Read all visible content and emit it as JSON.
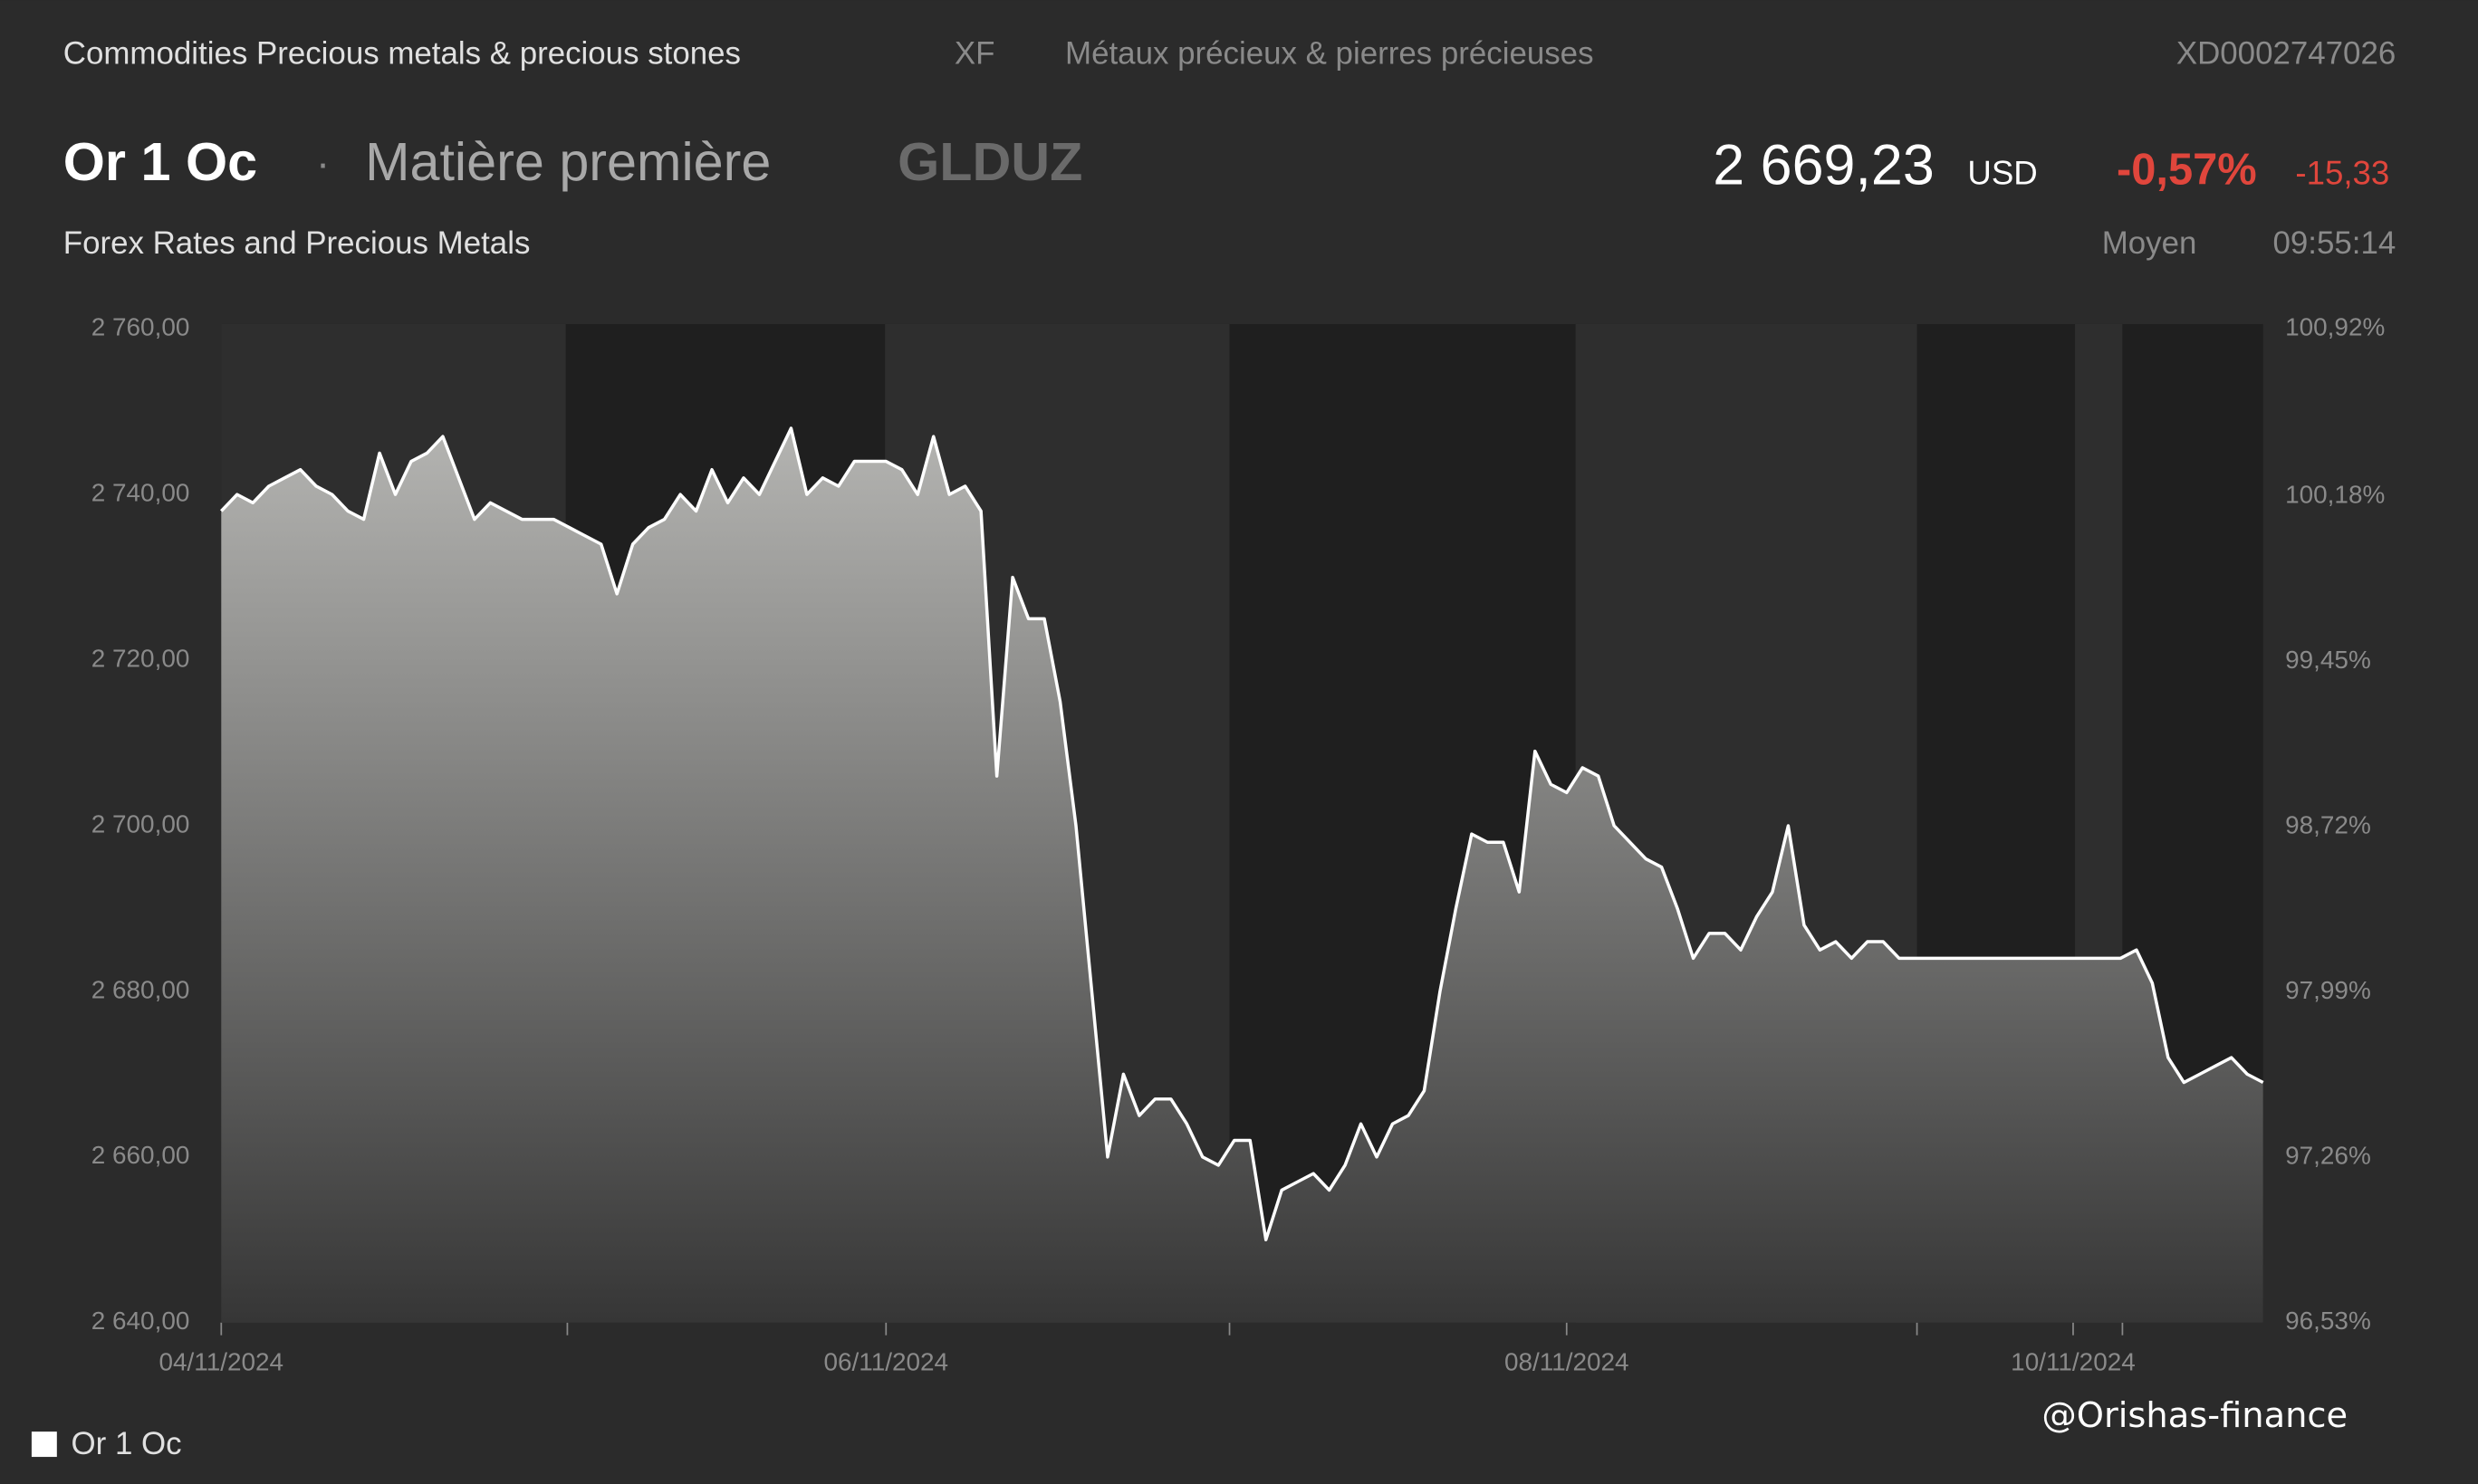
{
  "header": {
    "source": "Commodities Precious metals & precious stones",
    "exchange": "XF",
    "source_fr": "Métaux précieux & pierres précieuses",
    "code": "XD0002747026",
    "name": "Or 1 Oc",
    "separator": "·",
    "kind": "Matière première",
    "ticker": "GLDUZ",
    "price": "2 669,23",
    "currency": "USD",
    "change_pct": "-0,57%",
    "change": "-15,33",
    "market": "Forex Rates and Precious Metals",
    "price_type": "Moyen",
    "time": "09:55:14",
    "watermark": "@Orishas-finance"
  },
  "chart_data": {
    "type": "area",
    "categories": [
      "04/11/2024",
      null,
      null,
      null,
      null,
      null,
      null,
      null,
      null,
      null,
      null,
      null,
      null,
      null,
      null,
      null,
      null,
      null,
      null,
      null,
      null,
      null,
      null,
      null,
      null,
      null,
      null,
      null,
      null,
      null,
      null,
      null,
      null,
      null,
      null,
      null,
      null,
      null,
      null,
      null,
      null,
      null,
      "06/11/2024",
      null,
      null,
      null,
      null,
      null,
      null,
      null,
      null,
      null,
      null,
      null,
      null,
      null,
      null,
      null,
      null,
      null,
      null,
      null,
      null,
      null,
      null,
      null,
      null,
      null,
      null,
      null,
      null,
      null,
      null,
      null,
      null,
      null,
      null,
      null,
      null,
      null,
      null,
      null,
      null,
      null,
      null,
      "08/11/2024",
      null,
      null,
      null,
      null,
      null,
      null,
      null,
      null,
      null,
      null,
      null,
      null,
      null,
      null,
      null,
      null,
      null,
      null,
      null,
      null,
      null,
      null,
      null,
      null,
      null,
      null,
      null,
      null,
      null,
      null,
      null,
      "10/11/2024",
      null,
      null,
      null,
      null,
      null,
      null,
      null,
      null,
      null,
      null,
      null,
      null
    ],
    "series": [
      {
        "name": "Or 1 Oc",
        "color": "#ffffff",
        "values": [
          2738,
          2740,
          2739,
          2741,
          2742,
          2743,
          2741,
          2740,
          2738,
          2737,
          2745,
          2740,
          2744,
          2745,
          2747,
          2742,
          2737,
          2739,
          2738,
          2737,
          2737,
          2737,
          2736,
          2735,
          2734,
          2728,
          2734,
          2736,
          2737,
          2740,
          2738,
          2743,
          2739,
          2742,
          2740,
          2744,
          2748,
          2740,
          2742,
          2741,
          2744,
          2744,
          2744,
          2743,
          2740,
          2747,
          2740,
          2741,
          2738,
          2706,
          2730,
          2725,
          2725,
          2715,
          2700,
          2680,
          2660,
          2670,
          2665,
          2667,
          2667,
          2664,
          2660,
          2659,
          2662,
          2662,
          2650,
          2656,
          2657,
          2658,
          2656,
          2659,
          2664,
          2660,
          2664,
          2665,
          2668,
          2680,
          2690,
          2699,
          2698,
          2698,
          2692,
          2709,
          2705,
          2704,
          2707,
          2706,
          2700,
          2698,
          2696,
          2695,
          2690,
          2684,
          2687,
          2687,
          2685,
          2689,
          2692,
          2700,
          2688,
          2685,
          2686,
          2684,
          2686,
          2686,
          2684,
          2684,
          2684,
          2684,
          2684,
          2684,
          2684,
          2684,
          2684,
          2684,
          2684,
          2684,
          2684,
          2684,
          2684,
          2685,
          2681,
          2672,
          2669,
          2670,
          2671,
          2672,
          2670,
          2669
        ]
      }
    ],
    "ylim": [
      2640,
      2760
    ],
    "yticks": [
      {
        "value": 2640,
        "label": "2 640,00"
      },
      {
        "value": 2660,
        "label": "2 660,00"
      },
      {
        "value": 2680,
        "label": "2 680,00"
      },
      {
        "value": 2700,
        "label": "2 700,00"
      },
      {
        "value": 2720,
        "label": "2 720,00"
      },
      {
        "value": 2740,
        "label": "2 740,00"
      },
      {
        "value": 2760,
        "label": "2 760,00"
      }
    ],
    "y2lim": [
      96.53,
      100.92
    ],
    "y2ticks": [
      {
        "value": 96.53,
        "label": "96,53%"
      },
      {
        "value": 97.26,
        "label": "97,26%"
      },
      {
        "value": 97.99,
        "label": "97,99%"
      },
      {
        "value": 98.72,
        "label": "98,72%"
      },
      {
        "value": 99.45,
        "label": "99,45%"
      },
      {
        "value": 100.18,
        "label": "100,18%"
      },
      {
        "value": 100.92,
        "label": "100,92%"
      }
    ],
    "grid": false
  }
}
